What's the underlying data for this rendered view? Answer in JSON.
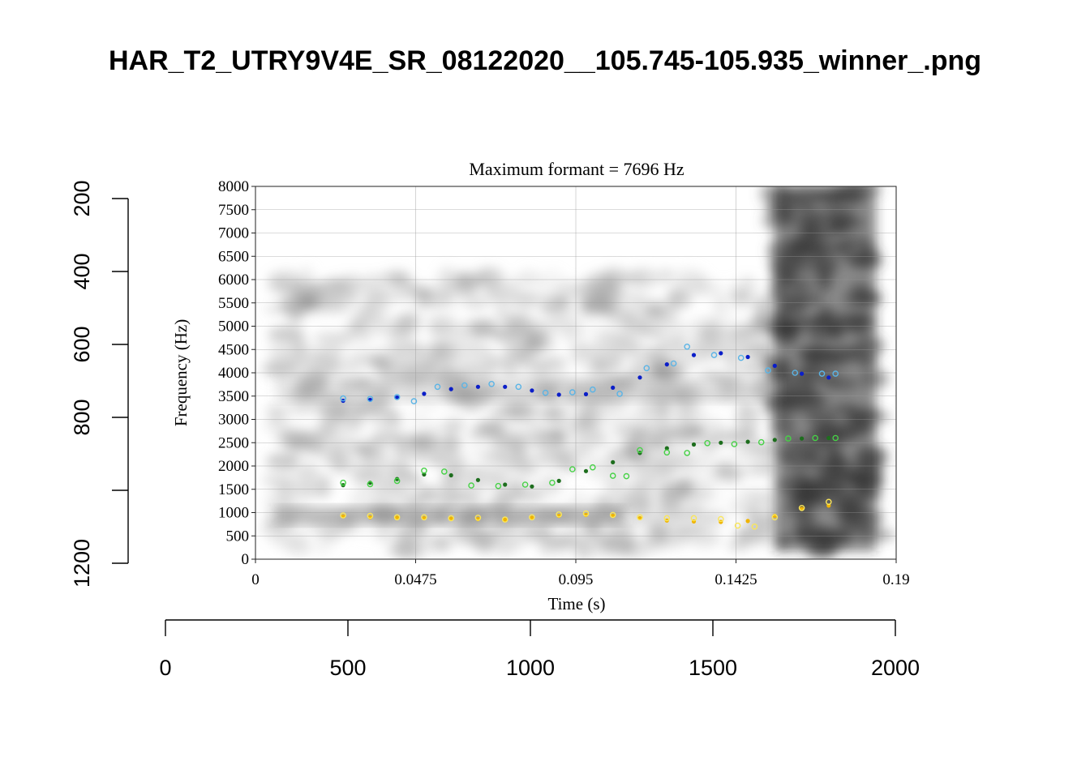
{
  "page": {
    "title": "HAR_T2_UTRY9V4E_SR_08122020__105.745-105.935_winner_.png"
  },
  "outer_axes": {
    "x_ticks": [
      "0",
      "500",
      "1000",
      "1500",
      "2000"
    ],
    "x_range": [
      0,
      2000
    ],
    "y_ticks": [
      "200",
      "400",
      "600",
      "800",
      "1200"
    ],
    "y_range": [
      1200,
      200
    ]
  },
  "chart_data": {
    "type": "scatter",
    "title": "Maximum formant = 7696 Hz",
    "xlabel": "Time (s)",
    "ylabel": "Frequency (Hz)",
    "xlim": [
      0,
      0.19
    ],
    "ylim": [
      0,
      8000
    ],
    "x_tick_labels": [
      "0",
      "0.0475",
      "0.095",
      "0.1425",
      "0.19"
    ],
    "y_tick_labels": [
      "0",
      "500",
      "1000",
      "1500",
      "2000",
      "2500",
      "3000",
      "3500",
      "4000",
      "4500",
      "5000",
      "5500",
      "6000",
      "6500",
      "7000",
      "7500",
      "8000"
    ],
    "grid": true,
    "background": "grayscale spectrogram",
    "series": [
      {
        "color": "#0b1ec8",
        "marker": "filled dot (smoothed track)",
        "points": [
          [
            0.026,
            3400
          ],
          [
            0.034,
            3420
          ],
          [
            0.042,
            3470
          ],
          [
            0.05,
            3550
          ],
          [
            0.058,
            3650
          ],
          [
            0.066,
            3700
          ],
          [
            0.074,
            3700
          ],
          [
            0.082,
            3620
          ],
          [
            0.09,
            3530
          ],
          [
            0.098,
            3540
          ],
          [
            0.106,
            3680
          ],
          [
            0.114,
            3900
          ],
          [
            0.122,
            4180
          ],
          [
            0.13,
            4380
          ],
          [
            0.138,
            4420
          ],
          [
            0.146,
            4340
          ],
          [
            0.154,
            4150
          ],
          [
            0.162,
            3980
          ],
          [
            0.17,
            3900
          ]
        ]
      },
      {
        "color": "#5ab4e6",
        "marker": "open circle (raw measurement)",
        "points": [
          [
            0.026,
            3450
          ],
          [
            0.034,
            3440
          ],
          [
            0.042,
            3480
          ],
          [
            0.047,
            3390
          ],
          [
            0.054,
            3700
          ],
          [
            0.062,
            3730
          ],
          [
            0.07,
            3760
          ],
          [
            0.078,
            3700
          ],
          [
            0.086,
            3570
          ],
          [
            0.094,
            3580
          ],
          [
            0.1,
            3640
          ],
          [
            0.108,
            3550
          ],
          [
            0.116,
            4100
          ],
          [
            0.124,
            4200
          ],
          [
            0.128,
            4560
          ],
          [
            0.136,
            4380
          ],
          [
            0.144,
            4320
          ],
          [
            0.152,
            4050
          ],
          [
            0.16,
            4000
          ],
          [
            0.168,
            3980
          ],
          [
            0.172,
            3980
          ]
        ]
      },
      {
        "color": "#1e6e1e",
        "marker": "filled dot (smoothed track)",
        "points": [
          [
            0.026,
            1590
          ],
          [
            0.034,
            1640
          ],
          [
            0.042,
            1720
          ],
          [
            0.05,
            1820
          ],
          [
            0.058,
            1800
          ],
          [
            0.066,
            1700
          ],
          [
            0.074,
            1600
          ],
          [
            0.082,
            1560
          ],
          [
            0.09,
            1680
          ],
          [
            0.098,
            1890
          ],
          [
            0.106,
            2080
          ],
          [
            0.114,
            2280
          ],
          [
            0.122,
            2380
          ],
          [
            0.13,
            2460
          ],
          [
            0.138,
            2500
          ],
          [
            0.146,
            2520
          ],
          [
            0.154,
            2560
          ],
          [
            0.162,
            2590
          ],
          [
            0.17,
            2600
          ]
        ]
      },
      {
        "color": "#46d246",
        "marker": "open circle (raw measurement)",
        "points": [
          [
            0.026,
            1640
          ],
          [
            0.034,
            1610
          ],
          [
            0.042,
            1680
          ],
          [
            0.05,
            1900
          ],
          [
            0.056,
            1880
          ],
          [
            0.064,
            1580
          ],
          [
            0.072,
            1570
          ],
          [
            0.08,
            1600
          ],
          [
            0.088,
            1640
          ],
          [
            0.094,
            1930
          ],
          [
            0.1,
            1970
          ],
          [
            0.106,
            1790
          ],
          [
            0.11,
            1780
          ],
          [
            0.114,
            2340
          ],
          [
            0.122,
            2290
          ],
          [
            0.128,
            2280
          ],
          [
            0.134,
            2490
          ],
          [
            0.142,
            2470
          ],
          [
            0.15,
            2510
          ],
          [
            0.158,
            2590
          ],
          [
            0.166,
            2600
          ],
          [
            0.172,
            2600
          ]
        ]
      },
      {
        "color": "#f0b400",
        "marker": "filled dot (smoothed track)",
        "points": [
          [
            0.026,
            920
          ],
          [
            0.034,
            900
          ],
          [
            0.042,
            890
          ],
          [
            0.05,
            880
          ],
          [
            0.058,
            870
          ],
          [
            0.066,
            860
          ],
          [
            0.074,
            850
          ],
          [
            0.082,
            890
          ],
          [
            0.09,
            930
          ],
          [
            0.098,
            950
          ],
          [
            0.106,
            930
          ],
          [
            0.114,
            880
          ],
          [
            0.122,
            830
          ],
          [
            0.13,
            810
          ],
          [
            0.138,
            800
          ],
          [
            0.146,
            820
          ],
          [
            0.154,
            930
          ],
          [
            0.162,
            1080
          ],
          [
            0.17,
            1150
          ]
        ]
      },
      {
        "color": "#fae65a",
        "marker": "open circle (raw measurement)",
        "points": [
          [
            0.026,
            940
          ],
          [
            0.034,
            930
          ],
          [
            0.042,
            900
          ],
          [
            0.05,
            900
          ],
          [
            0.058,
            880
          ],
          [
            0.066,
            890
          ],
          [
            0.074,
            850
          ],
          [
            0.082,
            900
          ],
          [
            0.09,
            960
          ],
          [
            0.098,
            980
          ],
          [
            0.106,
            950
          ],
          [
            0.114,
            900
          ],
          [
            0.122,
            880
          ],
          [
            0.13,
            880
          ],
          [
            0.138,
            860
          ],
          [
            0.143,
            720
          ],
          [
            0.148,
            700
          ],
          [
            0.154,
            900
          ],
          [
            0.162,
            1100
          ],
          [
            0.17,
            1230
          ]
        ]
      }
    ]
  }
}
